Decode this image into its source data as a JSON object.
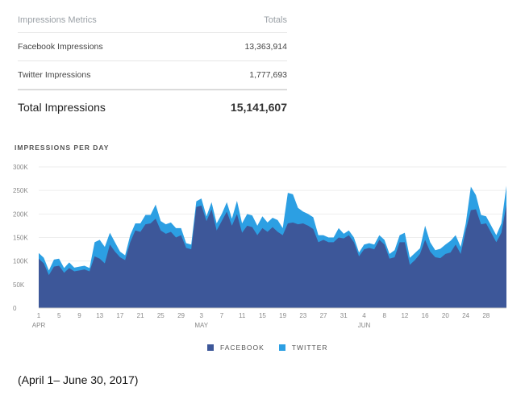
{
  "metrics": {
    "header_label": "Impressions Metrics",
    "header_value": "Totals",
    "rows": [
      {
        "label": "Facebook Impressions",
        "value": "13,363,914"
      },
      {
        "label": "Twitter Impressions",
        "value": "1,777,693"
      }
    ],
    "total_label": "Total Impressions",
    "total_value": "15,141,607"
  },
  "caption": "(April 1– June 30, 2017)",
  "colors": {
    "facebook": "#3d5799",
    "twitter": "#2c9fe3",
    "grid": "#eeeeee",
    "axis": "#888888"
  },
  "chart_data": {
    "type": "area",
    "title": "IMPRESSIONS PER DAY",
    "stacked": true,
    "xlabel": "",
    "ylabel": "",
    "ylim": [
      0,
      300000
    ],
    "y_ticks": [
      0,
      50000,
      100000,
      150000,
      200000,
      250000,
      300000
    ],
    "y_tick_labels": [
      "0",
      "50K",
      "100K",
      "150K",
      "200K",
      "250K",
      "300K"
    ],
    "x_ticks": [
      {
        "day": 1,
        "label": "1",
        "month": "APR"
      },
      {
        "day": 5,
        "label": "5"
      },
      {
        "day": 9,
        "label": "9"
      },
      {
        "day": 13,
        "label": "13"
      },
      {
        "day": 17,
        "label": "17"
      },
      {
        "day": 21,
        "label": "21"
      },
      {
        "day": 25,
        "label": "25"
      },
      {
        "day": 29,
        "label": "29"
      },
      {
        "day": 33,
        "label": "3",
        "month": "MAY"
      },
      {
        "day": 37,
        "label": "7"
      },
      {
        "day": 41,
        "label": "11"
      },
      {
        "day": 45,
        "label": "15"
      },
      {
        "day": 49,
        "label": "19"
      },
      {
        "day": 53,
        "label": "23"
      },
      {
        "day": 57,
        "label": "27"
      },
      {
        "day": 61,
        "label": "31"
      },
      {
        "day": 65,
        "label": "4",
        "month": "JUN"
      },
      {
        "day": 69,
        "label": "8"
      },
      {
        "day": 73,
        "label": "12"
      },
      {
        "day": 77,
        "label": "16"
      },
      {
        "day": 81,
        "label": "20"
      },
      {
        "day": 85,
        "label": "24"
      },
      {
        "day": 89,
        "label": "28"
      }
    ],
    "legend_position": "bottom",
    "series": [
      {
        "name": "FACEBOOK",
        "values": [
          105000,
          95000,
          70000,
          88000,
          90000,
          75000,
          85000,
          78000,
          80000,
          82000,
          78000,
          110000,
          105000,
          95000,
          135000,
          120000,
          108000,
          102000,
          140000,
          165000,
          162000,
          178000,
          180000,
          190000,
          165000,
          158000,
          162000,
          150000,
          155000,
          128000,
          125000,
          215000,
          218000,
          185000,
          210000,
          165000,
          185000,
          205000,
          175000,
          200000,
          160000,
          175000,
          172000,
          155000,
          170000,
          162000,
          172000,
          162000,
          155000,
          180000,
          182000,
          178000,
          180000,
          175000,
          168000,
          140000,
          145000,
          140000,
          140000,
          150000,
          148000,
          155000,
          140000,
          110000,
          125000,
          128000,
          125000,
          145000,
          135000,
          105000,
          108000,
          140000,
          140000,
          92000,
          102000,
          115000,
          145000,
          120000,
          108000,
          106000,
          115000,
          118000,
          135000,
          115000,
          165000,
          208000,
          210000,
          178000,
          180000,
          160000,
          140000,
          160000,
          220000
        ]
      },
      {
        "name": "TWITTER",
        "values": [
          12000,
          12000,
          10000,
          15000,
          15000,
          10000,
          12000,
          8000,
          8000,
          8000,
          7000,
          30000,
          40000,
          35000,
          25000,
          20000,
          12000,
          10000,
          15000,
          15000,
          18000,
          20000,
          18000,
          30000,
          20000,
          20000,
          20000,
          20000,
          15000,
          10000,
          10000,
          12000,
          15000,
          10000,
          15000,
          15000,
          15000,
          20000,
          15000,
          28000,
          20000,
          25000,
          25000,
          20000,
          25000,
          20000,
          20000,
          25000,
          15000,
          65000,
          60000,
          35000,
          25000,
          25000,
          25000,
          15000,
          10000,
          10000,
          10000,
          20000,
          10000,
          10000,
          10000,
          8000,
          10000,
          10000,
          10000,
          10000,
          10000,
          10000,
          15000,
          15000,
          20000,
          15000,
          15000,
          12000,
          30000,
          20000,
          15000,
          20000,
          20000,
          25000,
          20000,
          15000,
          15000,
          50000,
          30000,
          20000,
          15000,
          15000,
          15000,
          20000,
          40000
        ]
      }
    ]
  }
}
